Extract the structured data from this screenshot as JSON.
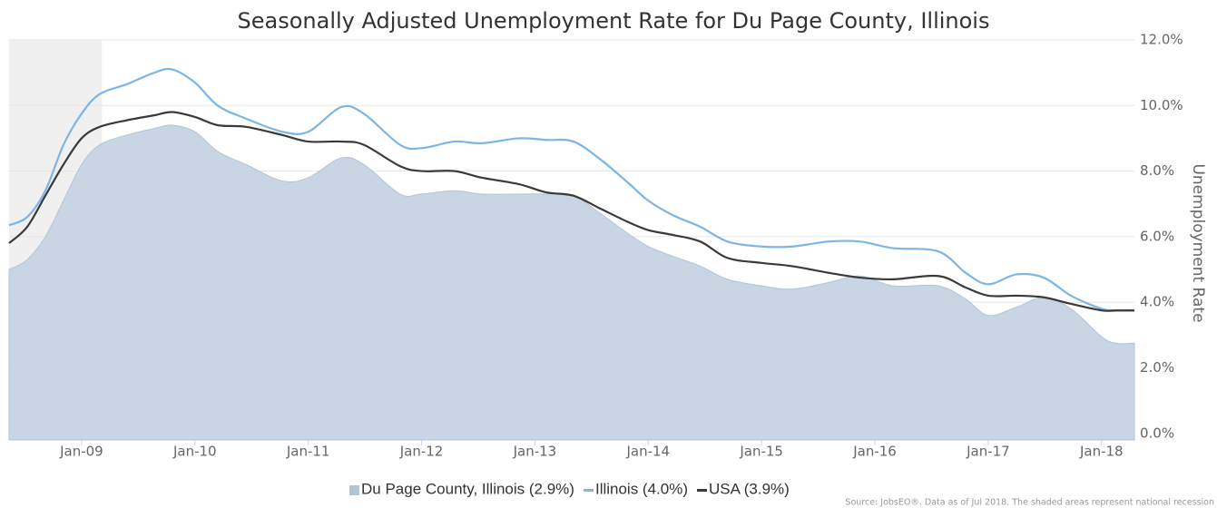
{
  "chart_data": {
    "type": "line",
    "title": "Seasonally Adjusted Unemployment Rate for Du Page County, Illinois",
    "y_axis_label": "Unemployment Rate",
    "source": "Source: JobsEO®. Data as of Jul 2018. The shaded areas represent national recession",
    "xlim": [
      2008.36,
      2018.29
    ],
    "ylim": [
      -0.2,
      12
    ],
    "xticks": [
      {
        "value": 2009,
        "label": "Jan-09"
      },
      {
        "value": 2010,
        "label": "Jan-10"
      },
      {
        "value": 2011,
        "label": "Jan-11"
      },
      {
        "value": 2012,
        "label": "Jan-12"
      },
      {
        "value": 2013,
        "label": "Jan-13"
      },
      {
        "value": 2014,
        "label": "Jan-14"
      },
      {
        "value": 2015,
        "label": "Jan-15"
      },
      {
        "value": 2016,
        "label": "Jan-16"
      },
      {
        "value": 2017,
        "label": "Jan-17"
      },
      {
        "value": 2018,
        "label": "Jan-18"
      }
    ],
    "yticks": [
      {
        "value": 0,
        "label": "0.0%"
      },
      {
        "value": 2,
        "label": "2.0%"
      },
      {
        "value": 4,
        "label": "4.0%"
      },
      {
        "value": 6,
        "label": "6.0%"
      },
      {
        "value": 8,
        "label": "8.0%"
      },
      {
        "value": 10,
        "label": "10.0%"
      },
      {
        "value": 12,
        "label": "12.0%"
      }
    ],
    "grid": true,
    "legend": "bottom",
    "recessions": [
      [
        2008.36,
        2009.18
      ]
    ],
    "x": [
      2008.36,
      2008.52,
      2008.68,
      2008.84,
      2009.0,
      2009.16,
      2009.4,
      2009.64,
      2009.8,
      2010.0,
      2010.2,
      2010.45,
      2010.77,
      2011.0,
      2011.29,
      2011.49,
      2011.81,
      2012.0,
      2012.29,
      2012.53,
      2012.86,
      2013.1,
      2013.34,
      2013.58,
      2013.82,
      2014.0,
      2014.22,
      2014.46,
      2014.7,
      2015.0,
      2015.27,
      2015.59,
      2015.87,
      2016.16,
      2016.56,
      2016.8,
      2017.0,
      2017.25,
      2017.49,
      2017.73,
      2018.0,
      2018.13,
      2018.29
    ],
    "series": [
      {
        "name": "Du Page County, Illinois (2.9%)",
        "type": "area",
        "color": "#c5d3e4",
        "values": [
          5.0,
          5.3,
          6.0,
          7.1,
          8.2,
          8.8,
          9.1,
          9.3,
          9.4,
          9.2,
          8.6,
          8.2,
          7.7,
          7.8,
          8.4,
          8.2,
          7.3,
          7.3,
          7.4,
          7.3,
          7.3,
          7.3,
          7.25,
          6.7,
          6.1,
          5.7,
          5.4,
          5.1,
          4.7,
          4.5,
          4.4,
          4.6,
          4.8,
          4.5,
          4.5,
          4.1,
          3.6,
          3.85,
          4.15,
          3.8,
          2.95,
          2.75,
          2.75
        ]
      },
      {
        "name": "Illinois (4.0%)",
        "type": "line",
        "color": "#7cb5e6",
        "values": [
          6.35,
          6.6,
          7.4,
          8.8,
          9.75,
          10.35,
          10.65,
          11.0,
          11.1,
          10.7,
          10.0,
          9.6,
          9.2,
          9.2,
          9.95,
          9.75,
          8.8,
          8.7,
          8.9,
          8.85,
          9.0,
          8.95,
          8.9,
          8.35,
          7.65,
          7.1,
          6.65,
          6.3,
          5.85,
          5.7,
          5.7,
          5.85,
          5.85,
          5.65,
          5.55,
          4.9,
          4.55,
          4.85,
          4.75,
          4.2,
          3.8,
          3.75,
          3.75
        ]
      },
      {
        "name": "USA (3.9%)",
        "type": "line",
        "color": "#3a3a3a",
        "values": [
          5.8,
          6.3,
          7.25,
          8.2,
          9.0,
          9.35,
          9.55,
          9.7,
          9.8,
          9.65,
          9.4,
          9.35,
          9.1,
          8.9,
          8.9,
          8.8,
          8.15,
          8.0,
          8.0,
          7.8,
          7.6,
          7.35,
          7.25,
          6.85,
          6.45,
          6.2,
          6.05,
          5.85,
          5.35,
          5.2,
          5.1,
          4.9,
          4.75,
          4.7,
          4.8,
          4.45,
          4.2,
          4.2,
          4.15,
          3.95,
          3.75,
          3.75,
          3.75
        ]
      }
    ]
  }
}
